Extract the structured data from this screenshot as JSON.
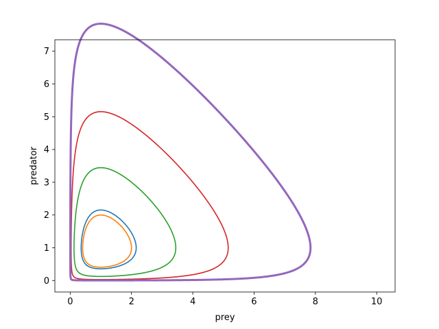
{
  "chart_data": {
    "type": "line",
    "xlabel": "prey",
    "ylabel": "predator",
    "xlim": [
      -0.5,
      10.6
    ],
    "ylim": [
      -0.35,
      7.35
    ],
    "xticks": [
      0,
      2,
      4,
      6,
      8,
      10
    ],
    "yticks": [
      0,
      1,
      2,
      3,
      4,
      5,
      6,
      7
    ],
    "grid": false,
    "legend": "none",
    "series": [
      {
        "color": "#1f77b4",
        "x0": 0.5,
        "y0": 0.5,
        "tmax": 9,
        "lw": 1.6
      },
      {
        "color": "#ff7f0e",
        "x0": 1.0,
        "y0": 2.0,
        "tmax": 18,
        "lw": 1.6
      },
      {
        "color": "#2ca02c",
        "x0": 2.0,
        "y0": 3.0,
        "tmax": 24,
        "lw": 1.6
      },
      {
        "color": "#d62728",
        "x0": 3.0,
        "y0": 4.0,
        "tmax": 28,
        "lw": 1.6
      },
      {
        "color": "#9467bd",
        "x0": 5.0,
        "y0": 5.0,
        "tmax": 34,
        "lw": 3.0
      }
    ]
  }
}
